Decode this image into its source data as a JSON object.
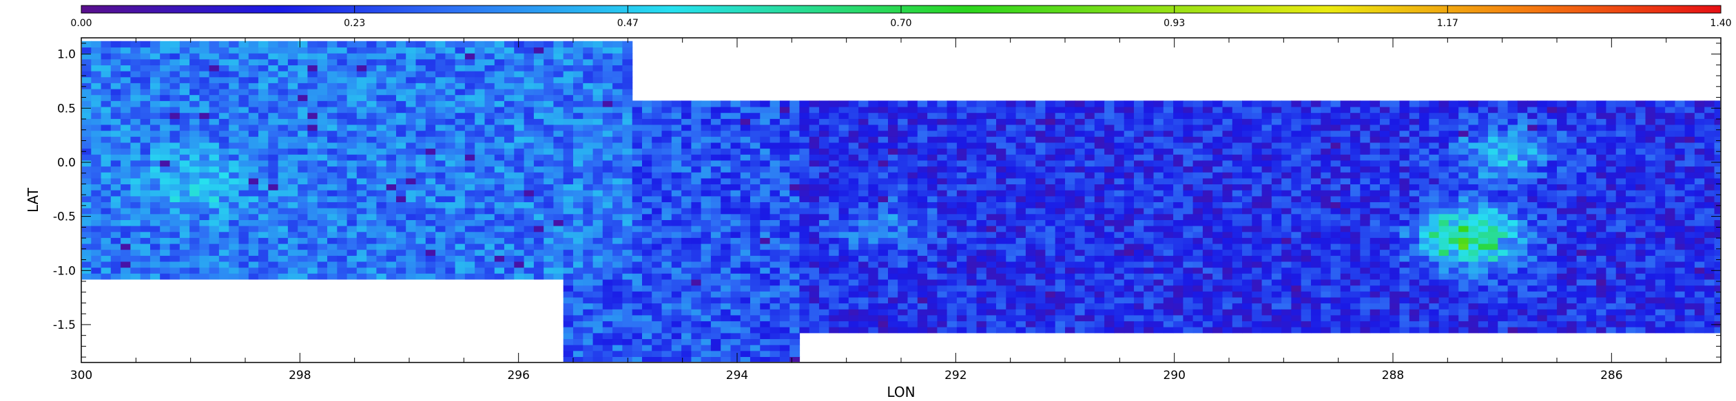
{
  "chart_data": {
    "type": "heatmap",
    "title": "",
    "xlabel": "LON",
    "ylabel": "LAT",
    "xlim": [
      300,
      285
    ],
    "ylim": [
      -1.85,
      1.15
    ],
    "x_ticks": [
      300,
      298,
      296,
      294,
      292,
      290,
      288,
      286
    ],
    "x_tick_labels": [
      "300",
      "298",
      "296",
      "294",
      "292",
      "290",
      "288",
      "286"
    ],
    "y_ticks": [
      1.0,
      0.5,
      0.0,
      -0.5,
      -1.0,
      -1.5
    ],
    "y_tick_labels": [
      "1.0",
      "0.5",
      "0.0",
      "-0.5",
      "-1.0",
      "-1.5"
    ],
    "colorbar": {
      "orientation": "horizontal",
      "position": "top",
      "range": [
        0.0,
        1.4
      ],
      "tick_labels": [
        "0.00",
        "0.23",
        "0.47",
        "0.70",
        "0.93",
        "1.17",
        "1.40"
      ],
      "colormap": "rainbow (purple-blue-cyan-green-yellow-red)"
    },
    "coverage_regions": [
      {
        "lon_range": [
          300,
          295.0
        ],
        "lat_range": [
          -1.1,
          1.1
        ],
        "mean_value": 0.33
      },
      {
        "lon_range": [
          295.6,
          294.9
        ],
        "lat_range": [
          -1.85,
          -1.1
        ],
        "mean_value": 0.28
      },
      {
        "lon_range": [
          295.0,
          293.4
        ],
        "lat_range": [
          -1.85,
          0.55
        ],
        "mean_value": 0.27
      },
      {
        "lon_range": [
          293.4,
          285.0
        ],
        "lat_range": [
          -1.55,
          0.55
        ],
        "mean_value": 0.2
      }
    ],
    "notable_features": [
      {
        "lon": 287.3,
        "lat": -0.7,
        "value": 0.9
      },
      {
        "lon": 292.7,
        "lat": -0.6,
        "value": 0.45
      },
      {
        "lon": 299.0,
        "lat": -0.2,
        "value": 0.45
      },
      {
        "lon": 287.0,
        "lat": 0.1,
        "value": 0.55
      }
    ]
  },
  "colors": {
    "colormap_stops": [
      "#5a0f8c",
      "#1a1ae6",
      "#2e6cf5",
      "#26e0f0",
      "#2bd61e",
      "#eaea10",
      "#f57d10",
      "#e60f14"
    ],
    "background": "#ffffff",
    "axes": "#000000"
  }
}
